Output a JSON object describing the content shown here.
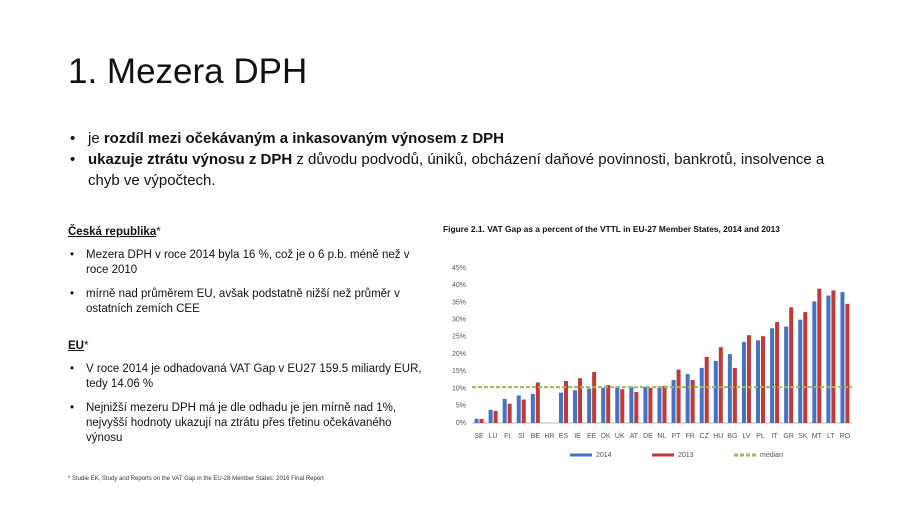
{
  "title": "1. Mezera DPH",
  "main_bullets": [
    {
      "plain": "je ",
      "bold": "rozdíl mezi očekávaným a inkasovaným výnosem z DPH"
    },
    {
      "bold": "ukazuje ztrátu výnosu z DPH",
      "plain": " z důvodu podvodů, úniků, obcházení daňové povinnosti, bankrotů, insolvence a chyb ve výpočtech."
    }
  ],
  "sections": [
    {
      "heading": "Česká republika",
      "mark": "*",
      "bullets": [
        "Mezera DPH v roce 2014 byla 16 %, což je o 6 p.b. méně než v roce 2010",
        "mírně nad průměrem EU, avšak podstatně nižší než průměr v ostatních zemích CEE"
      ]
    },
    {
      "heading": "EU",
      "mark": "*",
      "bullets": [
        "V roce 2014 je odhadovaná VAT Gap v EU27 159.5 miliardy EUR, tedy 14.06 %",
        "Nejnižší mezeru DPH má je dle odhadu je jen mírně nad 1%, nejvyšší hodnoty ukazují na ztrátu přes třetinu očekávaného výnosu"
      ]
    }
  ],
  "footnote": "* Studie EK, Study and Reports on the VAT Gap in the EU-28 Member States: 2016 Final Report",
  "chart_data": {
    "type": "bar",
    "title": "Figure 2.1. VAT Gap as a percent of the VTTL in EU-27 Member States, 2014 and 2013",
    "categories": [
      "SE",
      "LU",
      "FI",
      "SI",
      "BE",
      "HR",
      "ES",
      "IE",
      "EE",
      "DK",
      "UK",
      "AT",
      "DE",
      "NL",
      "PT",
      "FR",
      "CZ",
      "HU",
      "BG",
      "LV",
      "PL",
      "IT",
      "GR",
      "SK",
      "MT",
      "LT",
      "RO"
    ],
    "series": [
      {
        "name": "2014",
        "color": "#4472c4",
        "values": [
          1.2,
          3.8,
          7,
          8,
          8.4,
          null,
          8.8,
          9.5,
          10,
          10.2,
          10.5,
          10.5,
          10.5,
          10.6,
          12.5,
          14.2,
          16,
          18,
          20,
          23.5,
          24,
          27.5,
          28,
          30,
          35.3,
          37,
          38
        ]
      },
      {
        "name": "2013",
        "color": "#c0393b",
        "values": [
          1.2,
          3.5,
          5.6,
          6.8,
          11.8,
          null,
          12.2,
          13,
          14.8,
          11,
          9.8,
          9,
          10.2,
          10.8,
          15.5,
          12.5,
          19.2,
          22,
          16,
          25.5,
          25.2,
          29.3,
          33.6,
          32.2,
          39,
          38.5,
          34.6
        ]
      }
    ],
    "median": {
      "name": "median",
      "value": 10.4,
      "color": "#9bbb59"
    },
    "ylim": [
      0,
      45
    ],
    "yticks": [
      {
        "value": 0,
        "label": "0%"
      },
      {
        "value": 5,
        "label": "5%"
      },
      {
        "value": 10,
        "label": "10%"
      },
      {
        "value": 15,
        "label": "15%"
      },
      {
        "value": 20,
        "label": "20%"
      },
      {
        "value": 25,
        "label": "25%"
      },
      {
        "value": 30,
        "label": "30%"
      },
      {
        "value": 35,
        "label": "35%"
      },
      {
        "value": 40,
        "label": "40%"
      },
      {
        "value": 45,
        "label": "45%"
      }
    ],
    "grid": false
  }
}
